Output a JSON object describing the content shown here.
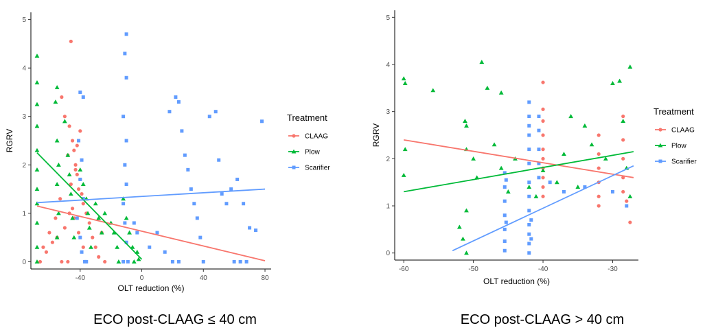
{
  "colors": {
    "CLAAG": "#F8766D",
    "Plow": "#00BA38",
    "Scarifier": "#619CFF"
  },
  "chart_data": [
    {
      "type": "scatter",
      "caption": "ECO post-CLAAG ≤ 40 cm",
      "xlabel": "OLT reduction (%)",
      "ylabel": "RGRV",
      "xlim": [
        -72,
        84
      ],
      "ylim": [
        -0.15,
        5.15
      ],
      "xticks": [
        -40,
        0,
        40,
        80
      ],
      "yticks": [
        0,
        1,
        2,
        3,
        4,
        5
      ],
      "legend": {
        "title": "Treatment",
        "entries": [
          "CLAAG",
          "Plow",
          "Scarifier"
        ],
        "placement": "right"
      },
      "series": [
        {
          "name": "CLAAG",
          "marker": "circle",
          "fit": [
            [
              -68,
              1.15
            ],
            [
              80,
              0.02
            ]
          ],
          "points": [
            [
              -46,
              4.55
            ],
            [
              -52,
              3.4
            ],
            [
              -50,
              3.0
            ],
            [
              -47,
              2.8
            ],
            [
              -45,
              2.5
            ],
            [
              -44,
              2.3
            ],
            [
              -48,
              2.2
            ],
            [
              -43,
              2.0
            ],
            [
              -42,
              1.8
            ],
            [
              -40,
              1.7
            ],
            [
              -41,
              1.5
            ],
            [
              -39,
              1.4
            ],
            [
              -38,
              1.2
            ],
            [
              -45,
              1.1
            ],
            [
              -47,
              1.0
            ],
            [
              -44,
              0.9
            ],
            [
              -50,
              0.7
            ],
            [
              -55,
              0.5
            ],
            [
              -60,
              0.6
            ],
            [
              -64,
              0.3
            ],
            [
              -66,
              0.0
            ],
            [
              -62,
              0.2
            ],
            [
              -58,
              0.4
            ],
            [
              -56,
              0.9
            ],
            [
              -53,
              1.3
            ],
            [
              -46,
              1.6
            ],
            [
              -43,
              1.9
            ],
            [
              -40,
              2.7
            ],
            [
              -42,
              2.4
            ],
            [
              -36,
              1.0
            ],
            [
              -34,
              0.8
            ],
            [
              -32,
              0.5
            ],
            [
              -30,
              0.3
            ],
            [
              -28,
              0.1
            ],
            [
              -26,
              0.6
            ],
            [
              -24,
              0.0
            ],
            [
              -48,
              0.0
            ],
            [
              -52,
              0.0
            ],
            [
              -38,
              0.3
            ],
            [
              -41,
              0.6
            ]
          ]
        },
        {
          "name": "Plow",
          "marker": "triangle",
          "fit": [
            [
              -68,
              2.25
            ],
            [
              0,
              0.05
            ]
          ],
          "points": [
            [
              -68,
              4.25
            ],
            [
              -68,
              3.7
            ],
            [
              -68,
              3.25
            ],
            [
              -68,
              2.8
            ],
            [
              -68,
              2.3
            ],
            [
              -68,
              1.9
            ],
            [
              -68,
              1.5
            ],
            [
              -68,
              1.2
            ],
            [
              -68,
              0.8
            ],
            [
              -68,
              0.3
            ],
            [
              -68,
              0.0
            ],
            [
              -55,
              3.6
            ],
            [
              -56,
              3.3
            ],
            [
              -55,
              2.5
            ],
            [
              -54,
              2.0
            ],
            [
              -55,
              1.6
            ],
            [
              -54,
              1.0
            ],
            [
              -55,
              0.5
            ],
            [
              -50,
              2.9
            ],
            [
              -48,
              2.2
            ],
            [
              -47,
              1.8
            ],
            [
              -46,
              1.4
            ],
            [
              -45,
              0.9
            ],
            [
              -44,
              0.5
            ],
            [
              -40,
              1.9
            ],
            [
              -38,
              1.6
            ],
            [
              -36,
              1.3
            ],
            [
              -35,
              1.0
            ],
            [
              -34,
              0.7
            ],
            [
              -33,
              0.3
            ],
            [
              -30,
              1.2
            ],
            [
              -28,
              0.9
            ],
            [
              -26,
              0.6
            ],
            [
              -24,
              1.0
            ],
            [
              -20,
              0.8
            ],
            [
              -18,
              0.6
            ],
            [
              -16,
              0.3
            ],
            [
              -15,
              0.0
            ],
            [
              -12,
              1.3
            ],
            [
              -10,
              0.9
            ],
            [
              -8,
              0.6
            ],
            [
              -6,
              0.3
            ],
            [
              -5,
              0.0
            ],
            [
              -3,
              0.2
            ],
            [
              -2,
              0.05
            ]
          ]
        },
        {
          "name": "Scarifier",
          "marker": "square",
          "fit": [
            [
              -68,
              1.22
            ],
            [
              80,
              1.5
            ]
          ],
          "points": [
            [
              -40,
              3.5
            ],
            [
              -38,
              3.4
            ],
            [
              -41,
              2.5
            ],
            [
              -39,
              2.1
            ],
            [
              -40,
              1.7
            ],
            [
              -38,
              1.3
            ],
            [
              -42,
              0.9
            ],
            [
              -40,
              0.5
            ],
            [
              -39,
              0.2
            ],
            [
              -37,
              0.0
            ],
            [
              -36,
              0.0
            ],
            [
              -10,
              4.7
            ],
            [
              -11,
              4.3
            ],
            [
              -10,
              3.8
            ],
            [
              -12,
              3.0
            ],
            [
              -10,
              2.5
            ],
            [
              -11,
              2.0
            ],
            [
              -10,
              1.6
            ],
            [
              -12,
              1.2
            ],
            [
              -11,
              0.8
            ],
            [
              -10,
              0.4
            ],
            [
              -12,
              0.0
            ],
            [
              -9,
              0.0
            ],
            [
              -5,
              0.8
            ],
            [
              -3,
              0.6
            ],
            [
              5,
              0.3
            ],
            [
              10,
              0.6
            ],
            [
              15,
              0.2
            ],
            [
              18,
              3.1
            ],
            [
              22,
              3.4
            ],
            [
              24,
              3.3
            ],
            [
              26,
              2.7
            ],
            [
              28,
              2.2
            ],
            [
              30,
              1.9
            ],
            [
              32,
              1.5
            ],
            [
              34,
              1.2
            ],
            [
              36,
              0.9
            ],
            [
              38,
              0.5
            ],
            [
              40,
              0.0
            ],
            [
              44,
              3.0
            ],
            [
              48,
              3.1
            ],
            [
              50,
              2.1
            ],
            [
              52,
              1.4
            ],
            [
              55,
              1.2
            ],
            [
              58,
              1.5
            ],
            [
              62,
              1.7
            ],
            [
              66,
              1.2
            ],
            [
              70,
              0.7
            ],
            [
              74,
              0.65
            ],
            [
              78,
              2.9
            ],
            [
              60,
              0.0
            ],
            [
              64,
              0.0
            ],
            [
              68,
              0.0
            ],
            [
              20,
              0.0
            ],
            [
              24,
              0.0
            ]
          ]
        }
      ]
    },
    {
      "type": "scatter",
      "caption": "ECO post-CLAAG > 40 cm",
      "xlabel": "OLT reduction (%)",
      "ylabel": "RGRV",
      "xlim": [
        -61.3,
        -26.3
      ],
      "ylim": [
        -0.15,
        5.15
      ],
      "xticks": [
        -60,
        -50,
        -40,
        -30
      ],
      "yticks": [
        0,
        1,
        2,
        3,
        4,
        5
      ],
      "legend": {
        "title": "Treatment",
        "entries": [
          "CLAAG",
          "Plow",
          "Scarifier"
        ],
        "placement": "right"
      },
      "series": [
        {
          "name": "CLAAG",
          "marker": "circle",
          "fit": [
            [
              -60,
              2.4
            ],
            [
              -27,
              1.6
            ]
          ],
          "points": [
            [
              -40,
              3.62
            ],
            [
              -40,
              3.05
            ],
            [
              -40,
              2.8
            ],
            [
              -40,
              2.5
            ],
            [
              -40,
              2.2
            ],
            [
              -40,
              2.0
            ],
            [
              -40,
              1.8
            ],
            [
              -40,
              1.6
            ],
            [
              -40,
              1.4
            ],
            [
              -40,
              1.2
            ],
            [
              -32,
              2.5
            ],
            [
              -32,
              2.1
            ],
            [
              -32,
              1.8
            ],
            [
              -32,
              1.5
            ],
            [
              -32,
              1.2
            ],
            [
              -32,
              1.0
            ],
            [
              -28.5,
              2.9
            ],
            [
              -28.5,
              2.4
            ],
            [
              -28.5,
              2.0
            ],
            [
              -28.5,
              1.6
            ],
            [
              -28.5,
              1.3
            ],
            [
              -28,
              1.1
            ],
            [
              -27.5,
              0.65
            ]
          ]
        },
        {
          "name": "Plow",
          "marker": "triangle",
          "fit": [
            [
              -60,
              1.3
            ],
            [
              -27,
              2.15
            ]
          ],
          "points": [
            [
              -60,
              3.7
            ],
            [
              -59.8,
              3.6
            ],
            [
              -59.8,
              2.2
            ],
            [
              -60,
              1.65
            ],
            [
              -55.8,
              3.45
            ],
            [
              -52,
              0.55
            ],
            [
              -51.5,
              0.3
            ],
            [
              -51,
              0.0
            ],
            [
              -51,
              0.9
            ],
            [
              -51.2,
              2.8
            ],
            [
              -51,
              2.7
            ],
            [
              -51,
              2.2
            ],
            [
              -50,
              2.0
            ],
            [
              -49.5,
              1.6
            ],
            [
              -48.8,
              4.05
            ],
            [
              -48,
              3.5
            ],
            [
              -47,
              2.3
            ],
            [
              -46,
              1.8
            ],
            [
              -46,
              3.4
            ],
            [
              -45,
              1.3
            ],
            [
              -44,
              2.0
            ],
            [
              -42,
              1.4
            ],
            [
              -41,
              1.2
            ],
            [
              -40,
              1.75
            ],
            [
              -38,
              1.5
            ],
            [
              -37,
              2.1
            ],
            [
              -36,
              2.9
            ],
            [
              -35,
              1.4
            ],
            [
              -34,
              2.7
            ],
            [
              -33,
              2.3
            ],
            [
              -31,
              2.0
            ],
            [
              -30,
              3.6
            ],
            [
              -29,
              3.65
            ],
            [
              -28.5,
              2.8
            ],
            [
              -28,
              1.8
            ],
            [
              -27.5,
              3.95
            ],
            [
              -27.5,
              1.2
            ]
          ]
        },
        {
          "name": "Scarifier",
          "marker": "square",
          "fit": [
            [
              -53,
              0.05
            ],
            [
              -27,
              1.85
            ]
          ],
          "points": [
            [
              -45.5,
              1.7
            ],
            [
              -45.5,
              1.4
            ],
            [
              -45.5,
              1.1
            ],
            [
              -45.5,
              0.8
            ],
            [
              -45.5,
              0.5
            ],
            [
              -45.5,
              0.25
            ],
            [
              -45.5,
              0.05
            ],
            [
              -45.3,
              1.55
            ],
            [
              -45.3,
              0.65
            ],
            [
              -42,
              3.2
            ],
            [
              -42,
              2.9
            ],
            [
              -42,
              2.7
            ],
            [
              -42,
              2.5
            ],
            [
              -42,
              2.2
            ],
            [
              -42,
              1.9
            ],
            [
              -42,
              1.5
            ],
            [
              -42,
              1.2
            ],
            [
              -42,
              0.9
            ],
            [
              -42,
              0.6
            ],
            [
              -42,
              0.4
            ],
            [
              -42,
              0.2
            ],
            [
              -42,
              0.0
            ],
            [
              -41.7,
              0.7
            ],
            [
              -41.7,
              0.3
            ],
            [
              -40.6,
              2.9
            ],
            [
              -40.6,
              2.6
            ],
            [
              -40.6,
              2.2
            ],
            [
              -40.6,
              1.9
            ],
            [
              -40.6,
              1.6
            ],
            [
              -39,
              1.5
            ],
            [
              -37,
              1.3
            ],
            [
              -34,
              1.4
            ],
            [
              -30,
              1.3
            ],
            [
              -28,
              1.0
            ]
          ]
        }
      ]
    }
  ]
}
